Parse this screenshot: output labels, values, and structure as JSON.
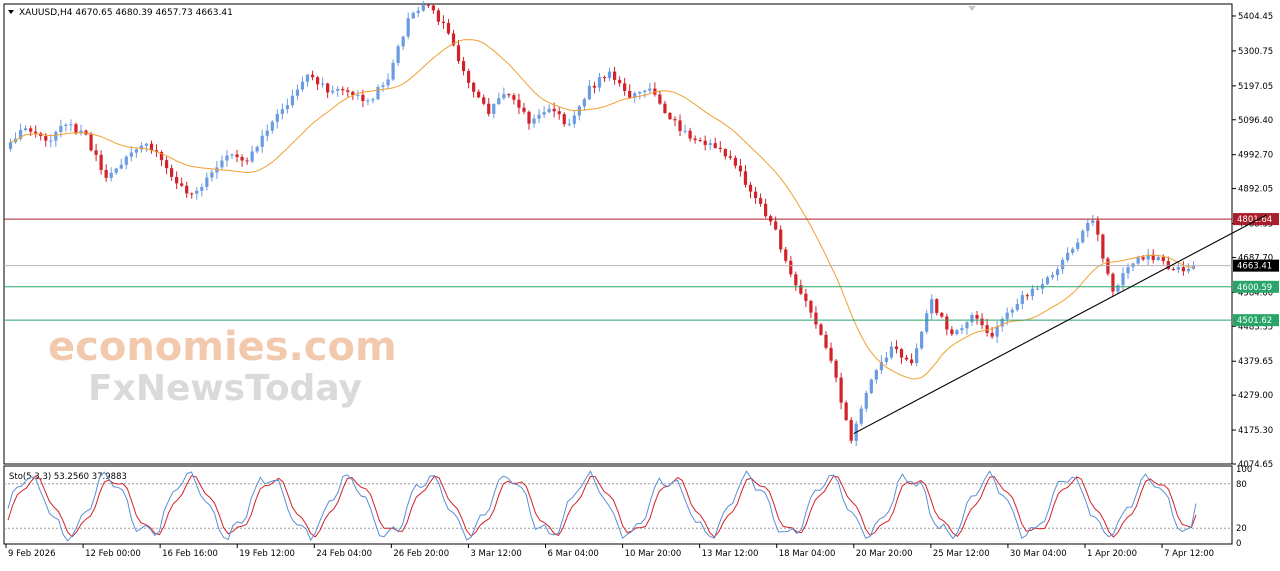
{
  "header": {
    "symbol": "XAUUSD,H4",
    "open": "4670.65",
    "high": "4680.39",
    "low": "4657.73",
    "close": "4663.41"
  },
  "watermark": {
    "line1": "economies.com",
    "line2": "FxNewsToday"
  },
  "colors": {
    "bull": "#6a9be3",
    "bear": "#d2232a",
    "ma": "#f0a030",
    "resistance": "#a81e2a",
    "support": "#2aa56a",
    "stoch_main": "#5b8fd6",
    "stoch_signal": "#d2232a"
  },
  "chart_data": [
    {
      "type": "candlestick",
      "symbol": "XAUUSD",
      "timeframe": "H4",
      "x_ticks": [
        "9 Feb 2026",
        "12 Feb 00:00",
        "16 Feb 16:00",
        "19 Feb 12:00",
        "24 Feb 04:00",
        "26 Feb 20:00",
        "3 Mar 12:00",
        "6 Mar 04:00",
        "10 Mar 20:00",
        "13 Mar 12:00",
        "18 Mar 04:00",
        "20 Mar 20:00",
        "25 Mar 12:00",
        "30 Mar 04:00",
        "1 Apr 20:00",
        "7 Apr 12:00"
      ],
      "y_ticks": [
        "5404.45",
        "5300.75",
        "5197.05",
        "5096.40",
        "4992.70",
        "4892.05",
        "4788.35",
        "4687.70",
        "4584.00",
        "4483.35",
        "4379.65",
        "4279.00",
        "4175.30",
        "4074.65"
      ],
      "ylim": [
        4074.65,
        5440
      ],
      "price_path": [
        5010,
        5075,
        5030,
        5085,
        5050,
        4915,
        4985,
        5030,
        4960,
        4870,
        4920,
        5000,
        4980,
        5060,
        5150,
        5240,
        5180,
        5190,
        5150,
        5220,
        5390,
        5440,
        5350,
        5200,
        5120,
        5180,
        5090,
        5130,
        5080,
        5190,
        5240,
        5170,
        5190,
        5100,
        5040,
        5020,
        4990,
        4880,
        4800,
        4640,
        4520,
        4380,
        4150,
        4330,
        4420,
        4380,
        4560,
        4450,
        4510,
        4460,
        4540,
        4590,
        4640,
        4720,
        4800,
        4590,
        4680,
        4690,
        4650,
        4663.41
      ],
      "last_price": "4663.41",
      "horizontal_levels": [
        {
          "label": "4801.64",
          "value": 4801.64,
          "color": "resistance"
        },
        {
          "label": "4600.59",
          "value": 4600.59,
          "color": "support"
        },
        {
          "label": "4501.62",
          "value": 4501.62,
          "color": "support"
        }
      ],
      "trendline": {
        "from": [
          42,
          4165
        ],
        "to": [
          61,
          4760
        ]
      },
      "moving_average": "orange"
    },
    {
      "type": "line",
      "label": "Sto(5,3,3) 53.2560 37.9883",
      "main_last": 53.256,
      "signal_last": 37.9883,
      "ylim": [
        0,
        100
      ],
      "levels": [
        20,
        80
      ],
      "y_ticks": [
        "100",
        "80",
        "20",
        "0"
      ]
    }
  ]
}
